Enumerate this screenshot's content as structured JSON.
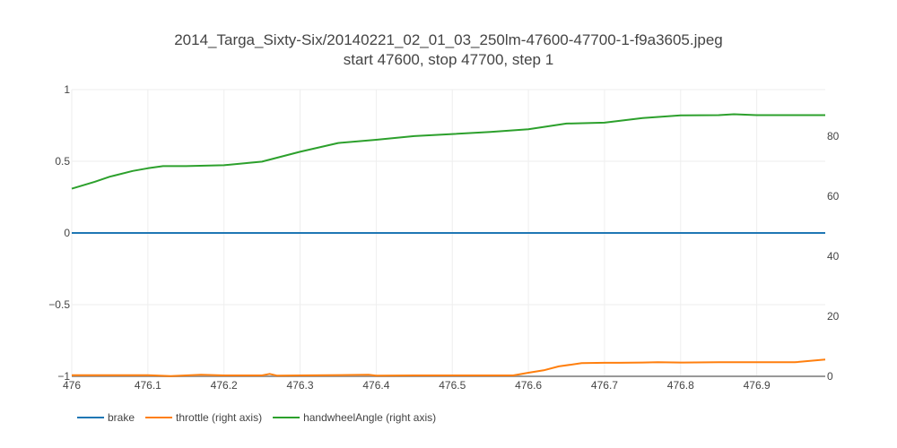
{
  "chart_data": {
    "type": "line",
    "title": "2014_Targa_Sixty-Six/20140221_02_01_03_250lm-47600-47700-1-f9a3605.jpeg",
    "subtitle": "start 47600, stop 47700, step 1",
    "x_ticks": [
      "476",
      "476.1",
      "476.2",
      "476.3",
      "476.4",
      "476.5",
      "476.6",
      "476.7",
      "476.8",
      "476.9"
    ],
    "y_left_ticks": [
      "1",
      "0.5",
      "0",
      "−0.5",
      "−1"
    ],
    "y_right_ticks": [
      "80",
      "60",
      "40",
      "20",
      "0"
    ],
    "xlim": [
      476,
      476.99
    ],
    "ylim_left": [
      -1,
      1
    ],
    "ylim_right": [
      0,
      95.5
    ],
    "grid": true,
    "legend_position": "bottom-left",
    "series": [
      {
        "name": "brake",
        "axis": "left",
        "color": "#1f77b4",
        "x": [
          476,
          476.99
        ],
        "y": [
          0,
          0
        ]
      },
      {
        "name": "throttle (right axis)",
        "axis": "right",
        "color": "#ff7f0e",
        "x": [
          476,
          476.1,
          476.13,
          476.17,
          476.2,
          476.25,
          476.26,
          476.27,
          476.3,
          476.39,
          476.4,
          476.45,
          476.5,
          476.58,
          476.6,
          476.62,
          476.64,
          476.67,
          476.7,
          476.72,
          476.75,
          476.77,
          476.8,
          476.85,
          476.9,
          476.95,
          476.99
        ],
        "y": [
          0.4,
          0.4,
          0.1,
          0.5,
          0.3,
          0.3,
          0.8,
          0.2,
          0.3,
          0.5,
          0.2,
          0.3,
          0.3,
          0.3,
          1.2,
          2.0,
          3.3,
          4.4,
          4.5,
          4.5,
          4.6,
          4.7,
          4.6,
          4.7,
          4.7,
          4.7,
          5.6
        ]
      },
      {
        "name": "handwheelAngle (right axis)",
        "axis": "right",
        "color": "#2ca02c",
        "x": [
          476,
          476.03,
          476.05,
          476.08,
          476.1,
          476.12,
          476.15,
          476.2,
          476.25,
          476.3,
          476.35,
          476.4,
          476.45,
          476.5,
          476.55,
          476.6,
          476.65,
          476.7,
          476.75,
          476.8,
          476.85,
          476.87,
          476.9,
          476.95,
          476.99
        ],
        "y": [
          62.5,
          64.8,
          66.5,
          68.4,
          69.3,
          70,
          70,
          70.3,
          71.5,
          74.8,
          77.7,
          78.8,
          80,
          80.7,
          81.4,
          82.3,
          84.2,
          84.5,
          86,
          86.9,
          87,
          87.3,
          87,
          87,
          87
        ]
      }
    ]
  }
}
